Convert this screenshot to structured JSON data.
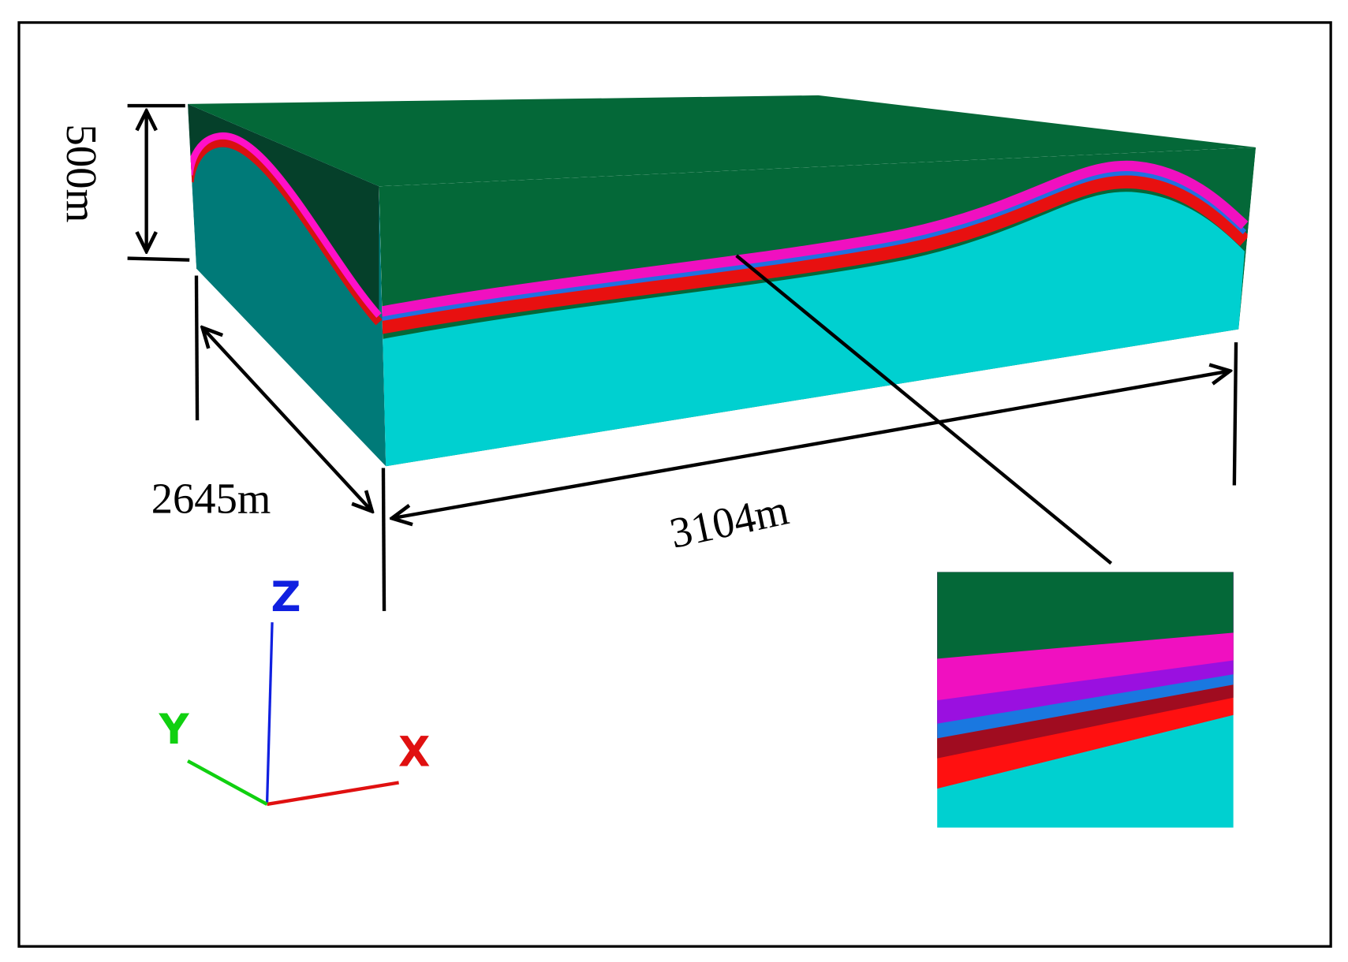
{
  "dimensions": {
    "height": "500m",
    "width": "2645m",
    "length": "3104m"
  },
  "axes": {
    "z": "Z",
    "y": "Y",
    "x": "X"
  }
}
